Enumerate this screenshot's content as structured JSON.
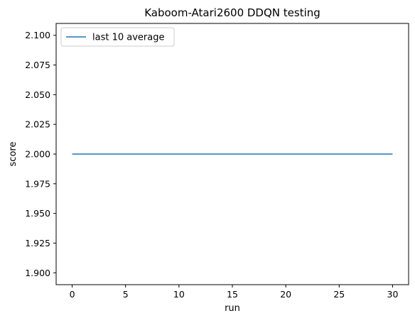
{
  "chart_data": {
    "type": "line",
    "title": "Kaboom-Atari2600 DDQN testing",
    "xlabel": "run",
    "ylabel": "score",
    "xlim": [
      -1.5,
      31.5
    ],
    "ylim": [
      1.89,
      2.11
    ],
    "xticks": [
      0,
      5,
      10,
      15,
      20,
      25,
      30
    ],
    "yticks": [
      1.9,
      1.925,
      1.95,
      1.975,
      2.0,
      2.025,
      2.05,
      2.075,
      2.1
    ],
    "ytick_labels": [
      "1.900",
      "1.925",
      "1.950",
      "1.975",
      "2.000",
      "2.025",
      "2.050",
      "2.075",
      "2.100"
    ],
    "grid": false,
    "legend": {
      "placement": "top-left"
    },
    "series": [
      {
        "name": "last 10 average",
        "color": "#1f77b4",
        "x": [
          0,
          30
        ],
        "y": [
          2.0,
          2.0
        ]
      }
    ]
  }
}
